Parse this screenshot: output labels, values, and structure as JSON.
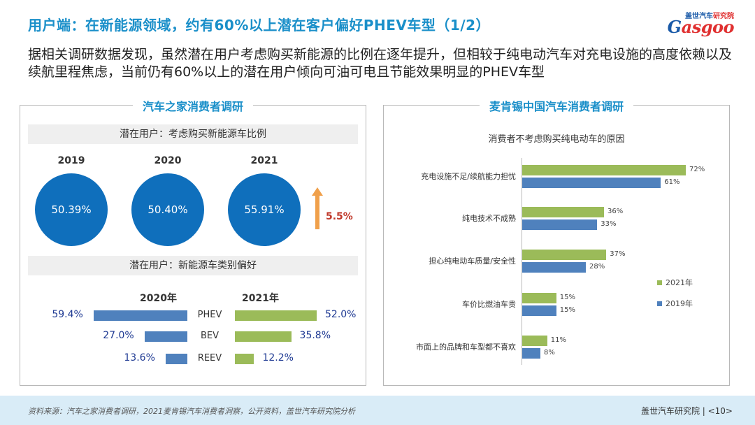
{
  "title": "用户端：在新能源领域，约有60%以上潜在客户偏好PHEV车型（1/2）",
  "logo": {
    "top_blue": "盖世汽车",
    "top_red": "研究院",
    "main_blue": "G",
    "main_red": "asgoo"
  },
  "intro": "据相关调研数据发现，虽然潜在用户考虑购买新能源的比例在逐年提升，但相较于纯电动汽车对充电设施的高度依赖以及续航里程焦虑，当前仍有60%以上的潜在用户倾向可油可电且节能效果明显的PHEV车型",
  "left_panel": {
    "title": "汽车之家消费者调研",
    "band1": "潜在用户：考虑购买新能源车比例",
    "band2": "潜在用户：新能源车类别偏好",
    "growth_label": "5.5%",
    "year_2020": "2020年",
    "year_2021": "2021年"
  },
  "right_panel": {
    "title": "麦肯锡中国汽车消费者调研"
  },
  "footer": {
    "source": "资料来源：汽车之家消费者调研，2021麦肯锡汽车消费者洞察，公开资料，盖世汽车研究院分析",
    "right": "盖世汽车研究院 | <10>"
  },
  "colors": {
    "accent": "#1a8fc9",
    "circle": "#0f6fbc",
    "blue": "#4f81bd",
    "green": "#9bbb59",
    "arrow": "#f0a04b"
  },
  "chart_data": [
    {
      "type": "table",
      "title": "潜在用户：考虑购买新能源车比例",
      "categories": [
        "2019",
        "2020",
        "2021"
      ],
      "values": [
        50.39,
        50.4,
        55.91
      ],
      "labels": [
        "50.39%",
        "50.40%",
        "55.91%"
      ]
    },
    {
      "type": "bar",
      "title": "潜在用户：新能源车类别偏好",
      "categories": [
        "PHEV",
        "BEV",
        "REEV"
      ],
      "series": [
        {
          "name": "2020年",
          "values": [
            59.4,
            27.0,
            13.6
          ],
          "labels": [
            "59.4%",
            "27.0%",
            "13.6%"
          ]
        },
        {
          "name": "2021年",
          "values": [
            52.0,
            35.8,
            12.2
          ],
          "labels": [
            "52.0%",
            "35.8%",
            "12.2%"
          ]
        }
      ]
    },
    {
      "type": "bar",
      "title": "消费者不考虑购买纯电动车的原因",
      "categories": [
        "充电设施不足/续航能力担忧",
        "纯电技术不成熟",
        "担心纯电动车质量/安全性",
        "车价比燃油车贵",
        "市面上的品牌和车型都不喜欢"
      ],
      "series": [
        {
          "name": "2021年",
          "values": [
            72,
            36,
            37,
            15,
            11
          ],
          "labels": [
            "72%",
            "36%",
            "37%",
            "15%",
            "11%"
          ]
        },
        {
          "name": "2019年",
          "values": [
            61,
            33,
            28,
            15,
            8
          ],
          "labels": [
            "61%",
            "33%",
            "28%",
            "15%",
            "8%"
          ]
        }
      ],
      "legend": "right"
    }
  ]
}
